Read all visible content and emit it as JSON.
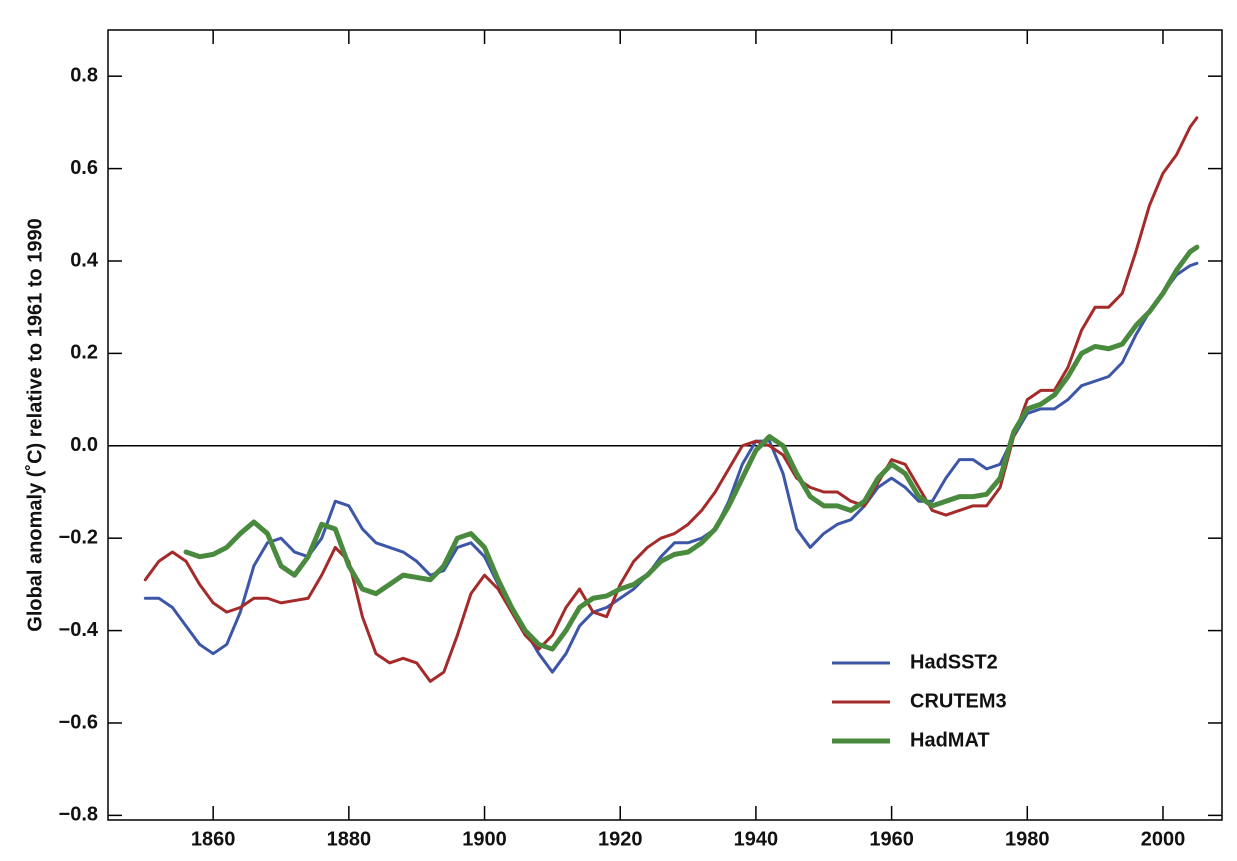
{
  "chart_data": {
    "type": "line",
    "ylabel": "Global anomaly (˚C)  relative to 1961 to 1990",
    "x": [
      1850,
      1852,
      1854,
      1856,
      1858,
      1860,
      1862,
      1864,
      1866,
      1868,
      1870,
      1872,
      1874,
      1876,
      1878,
      1880,
      1882,
      1884,
      1886,
      1888,
      1890,
      1892,
      1894,
      1896,
      1898,
      1900,
      1902,
      1904,
      1906,
      1908,
      1910,
      1912,
      1914,
      1916,
      1918,
      1920,
      1922,
      1924,
      1926,
      1928,
      1930,
      1932,
      1934,
      1936,
      1938,
      1940,
      1942,
      1944,
      1946,
      1948,
      1950,
      1952,
      1954,
      1956,
      1958,
      1960,
      1962,
      1964,
      1966,
      1968,
      1970,
      1972,
      1974,
      1976,
      1978,
      1980,
      1982,
      1984,
      1986,
      1988,
      1990,
      1992,
      1994,
      1996,
      1998,
      2000,
      2002,
      2004,
      2005
    ],
    "series": [
      {
        "name": "HadSST2",
        "color": "#3d56a8",
        "width": 3,
        "values": [
          -0.33,
          -0.33,
          -0.35,
          -0.39,
          -0.43,
          -0.45,
          -0.43,
          -0.36,
          -0.26,
          -0.21,
          -0.2,
          -0.23,
          -0.24,
          -0.2,
          -0.12,
          -0.13,
          -0.18,
          -0.21,
          -0.22,
          -0.23,
          -0.25,
          -0.28,
          -0.27,
          -0.22,
          -0.21,
          -0.24,
          -0.3,
          -0.35,
          -0.4,
          -0.45,
          -0.49,
          -0.45,
          -0.39,
          -0.36,
          -0.35,
          -0.33,
          -0.31,
          -0.28,
          -0.24,
          -0.21,
          -0.21,
          -0.2,
          -0.18,
          -0.12,
          -0.04,
          0.01,
          0.01,
          -0.06,
          -0.18,
          -0.22,
          -0.19,
          -0.17,
          -0.16,
          -0.13,
          -0.09,
          -0.07,
          -0.09,
          -0.12,
          -0.12,
          -0.07,
          -0.03,
          -0.03,
          -0.05,
          -0.04,
          0.02,
          0.07,
          0.08,
          0.08,
          0.1,
          0.13,
          0.14,
          0.15,
          0.18,
          0.24,
          0.29,
          0.33,
          0.37,
          0.39,
          0.395
        ]
      },
      {
        "name": "CRUTEM3",
        "color": "#a52a2a",
        "width": 3,
        "values": [
          -0.29,
          -0.25,
          -0.23,
          -0.25,
          -0.3,
          -0.34,
          -0.36,
          -0.35,
          -0.33,
          -0.33,
          -0.34,
          -0.335,
          -0.33,
          -0.28,
          -0.22,
          -0.25,
          -0.37,
          -0.45,
          -0.47,
          -0.46,
          -0.47,
          -0.51,
          -0.49,
          -0.41,
          -0.32,
          -0.28,
          -0.31,
          -0.36,
          -0.41,
          -0.44,
          -0.41,
          -0.35,
          -0.31,
          -0.36,
          -0.37,
          -0.3,
          -0.25,
          -0.22,
          -0.2,
          -0.19,
          -0.17,
          -0.14,
          -0.1,
          -0.05,
          0.0,
          0.01,
          0.0,
          -0.02,
          -0.07,
          -0.09,
          -0.1,
          -0.1,
          -0.12,
          -0.13,
          -0.08,
          -0.03,
          -0.04,
          -0.09,
          -0.14,
          -0.15,
          -0.14,
          -0.13,
          -0.13,
          -0.09,
          0.02,
          0.1,
          0.12,
          0.12,
          0.17,
          0.25,
          0.3,
          0.3,
          0.33,
          0.42,
          0.52,
          0.59,
          0.63,
          0.69,
          0.71
        ]
      },
      {
        "name": "HadMAT",
        "color": "#4a8a3e",
        "width": 5,
        "values": [
          null,
          null,
          null,
          -0.23,
          -0.24,
          -0.235,
          -0.22,
          -0.19,
          -0.165,
          -0.19,
          -0.26,
          -0.28,
          -0.24,
          -0.17,
          -0.18,
          -0.26,
          -0.31,
          -0.32,
          -0.3,
          -0.28,
          -0.285,
          -0.29,
          -0.26,
          -0.2,
          -0.19,
          -0.22,
          -0.29,
          -0.35,
          -0.4,
          -0.43,
          -0.44,
          -0.4,
          -0.35,
          -0.33,
          -0.325,
          -0.31,
          -0.3,
          -0.28,
          -0.25,
          -0.235,
          -0.23,
          -0.21,
          -0.18,
          -0.13,
          -0.07,
          -0.01,
          0.02,
          0.0,
          -0.06,
          -0.11,
          -0.13,
          -0.13,
          -0.14,
          -0.12,
          -0.07,
          -0.04,
          -0.06,
          -0.11,
          -0.13,
          -0.12,
          -0.11,
          -0.11,
          -0.105,
          -0.07,
          0.03,
          0.08,
          0.09,
          0.11,
          0.15,
          0.2,
          0.215,
          0.21,
          0.22,
          0.26,
          0.29,
          0.33,
          0.38,
          0.42,
          0.43
        ]
      }
    ],
    "xlim": [
      1844.5,
      2008.7
    ],
    "ylim": [
      -0.81,
      0.9
    ],
    "xticks": [
      1860,
      1880,
      1900,
      1920,
      1940,
      1960,
      1980,
      2000
    ],
    "yticks": [
      {
        "value": -0.8,
        "label": "−0.8"
      },
      {
        "value": -0.6,
        "label": "−0.6"
      },
      {
        "value": -0.4,
        "label": "−0.4"
      },
      {
        "value": -0.2,
        "label": "−0.2"
      },
      {
        "value": 0,
        "label": "0.0"
      },
      {
        "value": 0.2,
        "label": "0.2"
      },
      {
        "value": 0.4,
        "label": "0.4"
      },
      {
        "value": 0.6,
        "label": "0.6"
      },
      {
        "value": 0.8,
        "label": "0.8"
      }
    ],
    "zero_line": true,
    "legend": "lower right"
  }
}
